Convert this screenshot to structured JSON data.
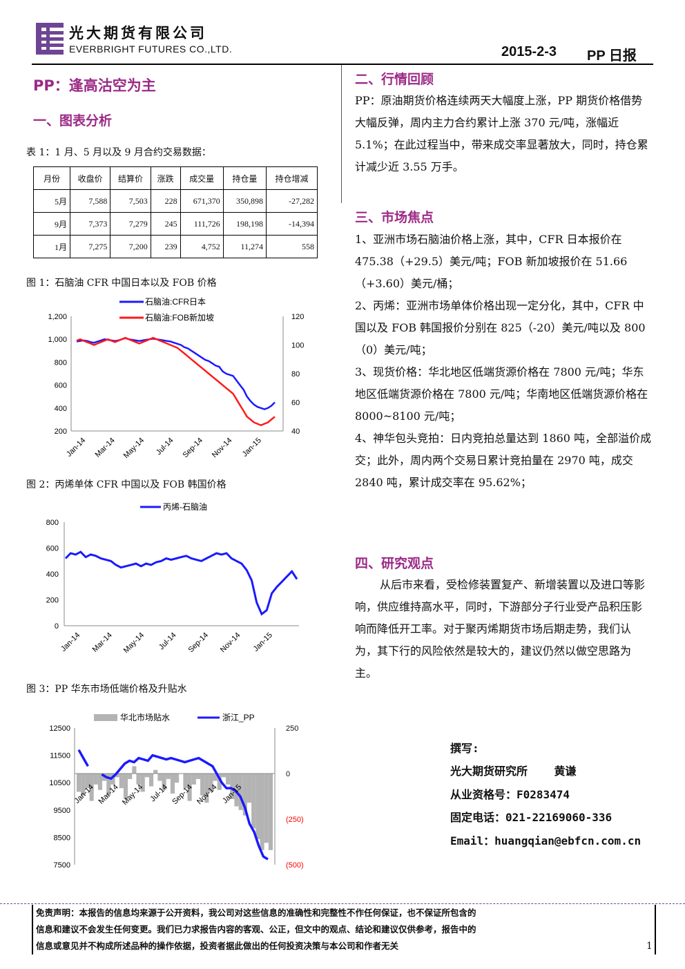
{
  "header": {
    "company_cn": "光大期货有限公司",
    "company_en": "EVERBRIGHT FUTURES CO.,LTD.",
    "date": "2015-2-3",
    "report_type": "PP 日报"
  },
  "colors": {
    "accent": "#9b2a86",
    "logo": "#6e4594",
    "blue_series": "#1a1aff",
    "red_series": "#ff1a1a",
    "gray_bars": "#b3b3b3"
  },
  "main_title": "PP：逢高沽空为主",
  "sections": {
    "s1": "一、图表分析",
    "s2": "二、行情回顾",
    "s3": "三、市场焦点",
    "s4": "四、研究观点"
  },
  "table1": {
    "caption": "表 1：1 月、5 月以及 9 月合约交易数据：",
    "headers": [
      "月份",
      "收盘价",
      "结算价",
      "涨跌",
      "成交量",
      "持仓量",
      "持仓增减"
    ],
    "rows": [
      [
        "5月",
        "7,588",
        "7,503",
        "228",
        "671,370",
        "350,898",
        "-27,282"
      ],
      [
        "9月",
        "7,373",
        "7,279",
        "245",
        "111,726",
        "198,198",
        "-14,394"
      ],
      [
        "1月",
        "7,275",
        "7,200",
        "239",
        "4,752",
        "11,274",
        "558"
      ]
    ]
  },
  "chart_data": [
    {
      "type": "line",
      "caption": "图 1：石脑油 CFR 中国日本以及 FOB 价格",
      "series": [
        {
          "name": "石脑油:CFR日本",
          "axis": "left",
          "values": [
            980,
            985,
            990,
            985,
            975,
            970,
            980,
            990,
            1000,
            995,
            990,
            985,
            990,
            1000,
            1010,
            1000,
            995,
            990,
            985,
            990,
            995,
            1000,
            1005,
            1000,
            995,
            990,
            985,
            980,
            970,
            960,
            950,
            930,
            920,
            900,
            880,
            860,
            840,
            820,
            810,
            790,
            770,
            760,
            720,
            700,
            690,
            680,
            640,
            600,
            560,
            500,
            460,
            430,
            410,
            400,
            390,
            400,
            420,
            450
          ]
        },
        {
          "name": "石脑油:FOB新加坡",
          "axis": "right",
          "values": [
            103,
            104,
            103,
            102,
            101,
            100,
            101,
            102,
            103,
            104,
            103,
            102,
            103,
            104,
            105,
            104,
            103,
            102,
            101,
            102,
            103,
            104,
            105,
            104,
            103,
            102,
            101,
            100,
            99,
            98,
            96,
            94,
            92,
            90,
            88,
            86,
            84,
            82,
            80,
            78,
            76,
            74,
            72,
            70,
            68,
            66,
            62,
            58,
            54,
            50,
            48,
            46,
            45,
            44,
            45,
            46,
            48,
            50
          ]
        }
      ],
      "x_tick_labels": [
        "Jan-14",
        "Mar-14",
        "May-14",
        "Jul-14",
        "Sep-14",
        "Nov-14",
        "Jan-15"
      ],
      "y_left": {
        "ticks": [
          "200",
          "400",
          "600",
          "800",
          "1,000",
          "1,200"
        ],
        "ylim": [
          200,
          1200
        ]
      },
      "y_right": {
        "ticks": [
          "40",
          "60",
          "80",
          "100",
          "120"
        ],
        "ylim": [
          40,
          120
        ]
      },
      "legend": "top"
    },
    {
      "type": "line",
      "caption": "图 2：丙烯单体 CFR 中国以及 FOB 韩国价格",
      "series": [
        {
          "name": "丙烯-石脑油",
          "values": [
            520,
            560,
            550,
            570,
            530,
            550,
            540,
            520,
            510,
            500,
            470,
            450,
            460,
            470,
            480,
            460,
            480,
            470,
            490,
            500,
            520,
            510,
            520,
            530,
            540,
            520,
            510,
            500,
            520,
            540,
            560,
            550,
            560,
            520,
            500,
            480,
            430,
            350,
            180,
            90,
            120,
            250,
            300,
            340,
            380,
            420,
            360
          ]
        }
      ],
      "x_tick_labels": [
        "Jan-14",
        "Mar-14",
        "May-14",
        "Jul-14",
        "Sep-14",
        "Nov-14",
        "Jan-15"
      ],
      "y": {
        "ticks": [
          "0",
          "200",
          "400",
          "600",
          "800"
        ],
        "ylim": [
          0,
          800
        ]
      },
      "legend": "top"
    },
    {
      "type": "line",
      "caption": "图 3：PP 华东市场低端价格及升贴水",
      "series": [
        {
          "name": "华北市场贴水",
          "kind": "area",
          "axis": "right",
          "values": [
            -100,
            -120,
            -80,
            -150,
            -60,
            -90,
            -40,
            -120,
            -60,
            -20,
            -80,
            -140,
            -30,
            40,
            -60,
            -100,
            -20,
            -70,
            20,
            -40,
            -90,
            -30,
            -110,
            -50,
            0,
            -80,
            -150,
            -60,
            -30,
            -120,
            -160,
            -100,
            -40,
            -90,
            -20,
            -60,
            -140,
            -180,
            -200,
            -230,
            -160,
            -300,
            -360,
            -420,
            -380,
            -420
          ]
        },
        {
          "name": "浙江_PP",
          "kind": "line",
          "axis": "left",
          "values": [
            11700,
            11400,
            11100,
            null,
            null,
            10800,
            10700,
            10650,
            10800,
            11000,
            11200,
            11300,
            11250,
            11400,
            11350,
            11300,
            11500,
            11450,
            11400,
            11350,
            11400,
            11350,
            11300,
            11250,
            11300,
            11350,
            11400,
            11300,
            11200,
            11100,
            10800,
            10500,
            10300,
            10300,
            10200,
            10000,
            9600,
            9000,
            8700,
            8200,
            7800,
            7700
          ]
        }
      ],
      "x_tick_labels": [
        "Jan-14",
        "Mar-14",
        "May-14",
        "Jul-14",
        "Sep-14",
        "Nov-14",
        "Jan-15"
      ],
      "y_left": {
        "ticks": [
          "7500",
          "8500",
          "9500",
          "10500",
          "11500",
          "12500"
        ],
        "ylim": [
          7500,
          12500
        ]
      },
      "y_right": {
        "ticks": [
          "(500)",
          "(250)",
          "0",
          "250"
        ],
        "ylim": [
          -500,
          250
        ]
      },
      "legend": "top"
    }
  ],
  "review_text": "PP：原油期货价格连续两天大幅度上涨，PP 期货价格借势大幅反弹，周内主力合约累计上涨 370 元/吨，涨幅近 5.1%；在此过程当中，带来成交率显著放大，同时，持仓累计减少近 3.55 万手。",
  "focus_items": [
    "1、亚洲市场石脑油价格上涨，其中，CFR 日本报价在 475.38（+29.5）美元/吨；FOB 新加坡报价在 51.66（+3.60）美元/桶；",
    "2、丙烯：亚洲市场单体价格出现一定分化，其中，CFR 中国以及 FOB 韩国报价分别在 825（-20）美元/吨以及 800（0）美元/吨；",
    "3、现货价格：华北地区低端货源价格在 7800 元/吨；华东地区低端货源价格在 7800 元/吨；华南地区低端货源价格在 8000~8100 元/吨；",
    "4、神华包头竞拍：日内竞拍总量达到 1860 吨，全部溢价成交；此外，周内两个交易日累计竞拍量在 2970 吨，成交 2840 吨，累计成交率在 95.62%；"
  ],
  "opinion_text": "从后市来看，受检修装置复产、新增装置以及进口等影响，供应维持高水平，同时，下游部分子行业受产品积压影响而降低开工率。对于聚丙烯期货市场后期走势，我们认为，其下行的风险依然是较大的，建议仍然以做空思路为主。",
  "author": {
    "label": "撰写:",
    "org": "光大期货研究所    黄谦",
    "license": "从业资格号：F0283474",
    "phone": "固定电话：021-22169060-336",
    "email": "Email：huangqian@ebfcn.com.cn"
  },
  "disclaimer": {
    "line1": "免责声明：本报告的信息均来源于公开资料，我公司对这些信息的准确性和完整性不作任何保证，也不保证所包含的",
    "line2": "信息和建议不会发生任何变更。我们已力求报告内容的客观、公正，但文中的观点、结论和建议仅供参考，报告中的",
    "line3": "信息或意见并不构成所述品种的操作依据，投资者据此做出的任何投资决策与本公司和作者无关"
  },
  "page_number": "1"
}
